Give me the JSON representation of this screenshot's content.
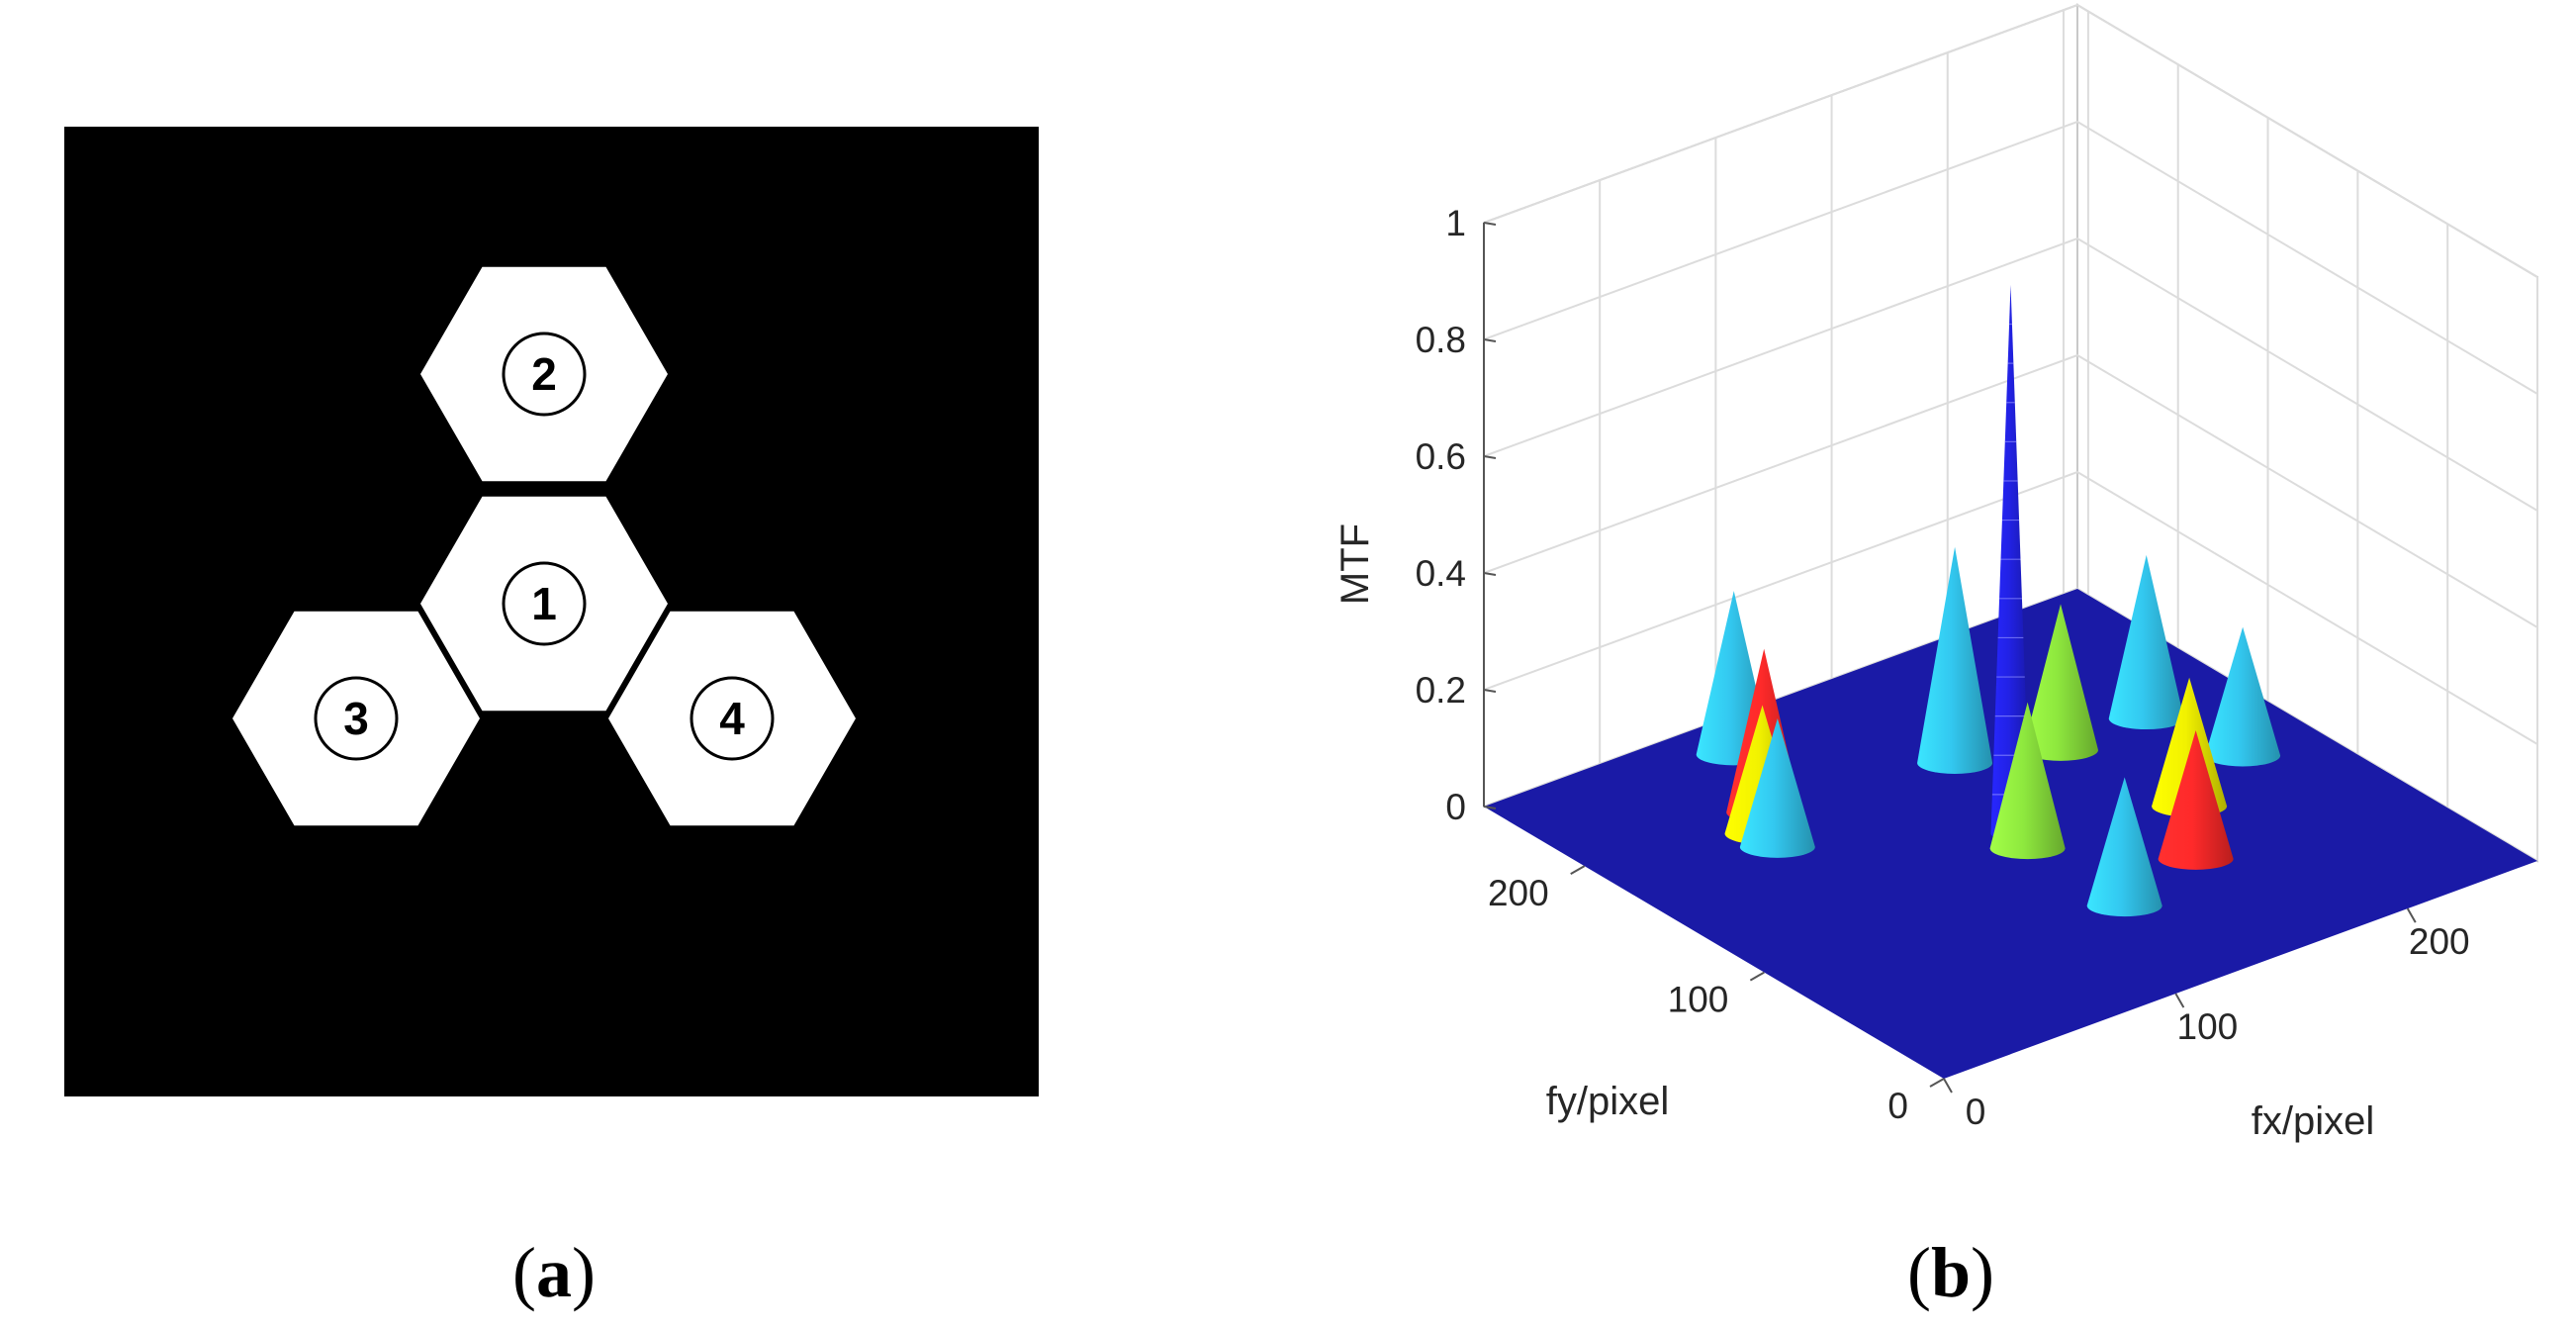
{
  "panels": {
    "a": {
      "caption_open": "(",
      "caption_letter": "a",
      "caption_close": ")",
      "sub_apertures": [
        {
          "label": "1",
          "col": 0,
          "row": 0
        },
        {
          "label": "2",
          "col": 0,
          "row": -1
        },
        {
          "label": "3",
          "col": -1,
          "row": 0.5
        },
        {
          "label": "4",
          "col": 1,
          "row": 0.5
        }
      ],
      "colors": {
        "background": "#000000",
        "aperture": "#ffffff"
      }
    },
    "b": {
      "caption_open": "(",
      "caption_letter": "b",
      "caption_close": ")"
    }
  },
  "chart_data": {
    "type": "surface",
    "title": "",
    "xlabel": "fx/pixel",
    "ylabel": "fy/pixel",
    "zlabel": "MTF",
    "xlim": [
      0,
      256
    ],
    "ylim": [
      0,
      256
    ],
    "zlim": [
      0,
      1
    ],
    "x_ticks": [
      "0",
      "100",
      "200"
    ],
    "y_ticks": [
      "0",
      "100",
      "200"
    ],
    "z_ticks": [
      "0",
      "0.2",
      "0.4",
      "0.6",
      "0.8",
      "1"
    ],
    "grid": true,
    "peaks": [
      {
        "fx": 128,
        "fy": 128,
        "mtf": 0.94,
        "color": "#2222e6"
      },
      {
        "fx": 145,
        "fy": 181,
        "mtf": 0.37,
        "color": "#33c8f0"
      },
      {
        "fx": 90,
        "fy": 233,
        "mtf": 0.28,
        "color": "#33c8f0"
      },
      {
        "fx": 216,
        "fy": 166,
        "mtf": 0.28,
        "color": "#33c8f0"
      },
      {
        "fx": 60,
        "fy": 170,
        "mtf": 0.22,
        "color": "#33c8f0"
      },
      {
        "fx": 126,
        "fy": 62,
        "mtf": 0.22,
        "color": "#33c8f0"
      },
      {
        "fx": 225,
        "fy": 124,
        "mtf": 0.22,
        "color": "#33c8f0"
      },
      {
        "fx": 72,
        "fy": 193,
        "mtf": 0.28,
        "color": "#ff2a2a"
      },
      {
        "fx": 166,
        "fy": 74,
        "mtf": 0.22,
        "color": "#ff2a2a"
      },
      {
        "fx": 62,
        "fy": 181,
        "mtf": 0.22,
        "color": "#f2f200"
      },
      {
        "fx": 188,
        "fy": 106,
        "mtf": 0.22,
        "color": "#f2f200"
      },
      {
        "fx": 126,
        "fy": 116,
        "mtf": 0.25,
        "color": "#8ee83e"
      },
      {
        "fx": 179,
        "fy": 166,
        "mtf": 0.25,
        "color": "#8ee83e"
      }
    ],
    "colors": {
      "floor": "#1a1aa6",
      "grid": "#dcdcdc",
      "box": "#c9c9c9"
    }
  }
}
